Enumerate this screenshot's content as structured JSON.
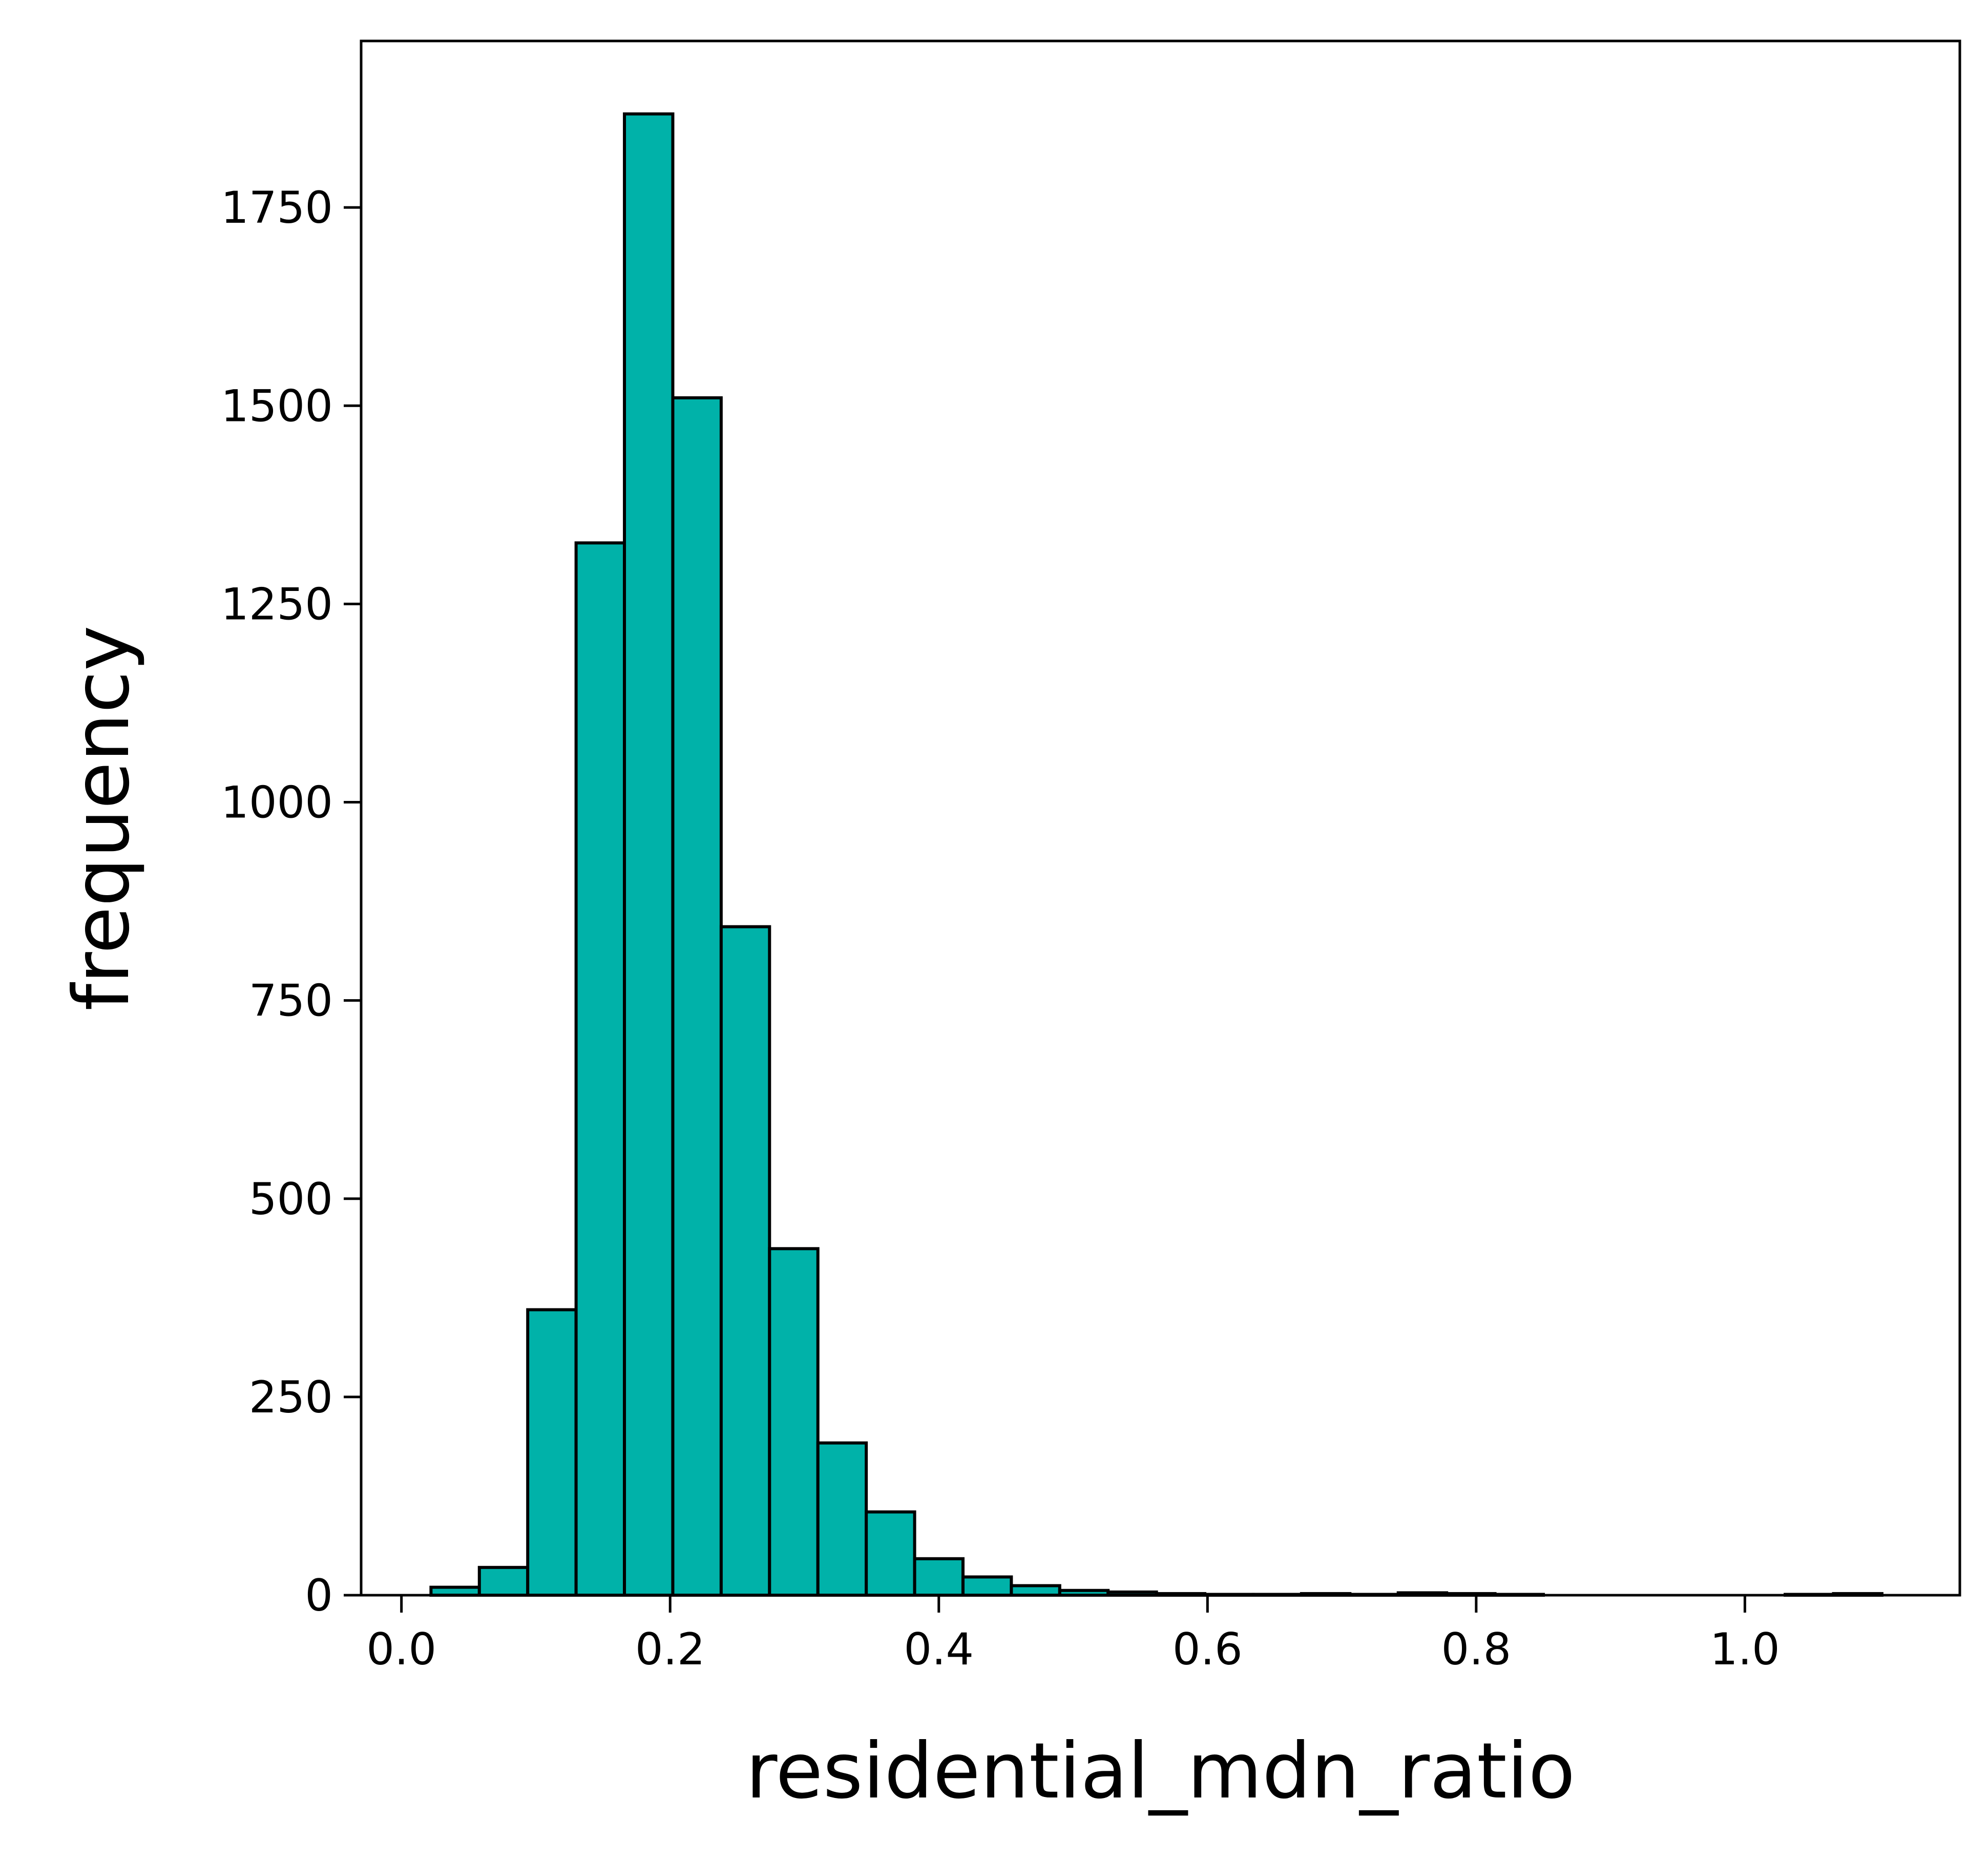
{
  "chart_data": {
    "type": "bar",
    "xlabel": "residential_mdn_ratio",
    "ylabel": "frequency",
    "xlim": [
      -0.03,
      1.16
    ],
    "ylim": [
      0,
      1960
    ],
    "xticks": [
      0.0,
      0.2,
      0.4,
      0.6,
      0.8,
      1.0
    ],
    "xtick_labels": [
      "0.0",
      "0.2",
      "0.4",
      "0.6",
      "0.8",
      "1.0"
    ],
    "yticks": [
      0,
      250,
      500,
      750,
      1000,
      1250,
      1500,
      1750
    ],
    "ytick_labels": [
      "0",
      "250",
      "500",
      "750",
      "1000",
      "1250",
      "1500",
      "1750"
    ],
    "bins": [
      {
        "x0": 0.022,
        "x1": 0.058,
        "count": 10
      },
      {
        "x0": 0.058,
        "x1": 0.094,
        "count": 35
      },
      {
        "x0": 0.094,
        "x1": 0.13,
        "count": 360
      },
      {
        "x0": 0.13,
        "x1": 0.166,
        "count": 1327
      },
      {
        "x0": 0.166,
        "x1": 0.202,
        "count": 1868
      },
      {
        "x0": 0.202,
        "x1": 0.238,
        "count": 1510
      },
      {
        "x0": 0.238,
        "x1": 0.274,
        "count": 843
      },
      {
        "x0": 0.274,
        "x1": 0.31,
        "count": 437
      },
      {
        "x0": 0.31,
        "x1": 0.346,
        "count": 192
      },
      {
        "x0": 0.346,
        "x1": 0.382,
        "count": 105
      },
      {
        "x0": 0.382,
        "x1": 0.418,
        "count": 46
      },
      {
        "x0": 0.418,
        "x1": 0.454,
        "count": 23
      },
      {
        "x0": 0.454,
        "x1": 0.49,
        "count": 12
      },
      {
        "x0": 0.49,
        "x1": 0.526,
        "count": 6
      },
      {
        "x0": 0.526,
        "x1": 0.562,
        "count": 4
      },
      {
        "x0": 0.562,
        "x1": 0.598,
        "count": 2
      },
      {
        "x0": 0.598,
        "x1": 0.634,
        "count": 1
      },
      {
        "x0": 0.634,
        "x1": 0.67,
        "count": 1
      },
      {
        "x0": 0.67,
        "x1": 0.706,
        "count": 2
      },
      {
        "x0": 0.706,
        "x1": 0.742,
        "count": 1
      },
      {
        "x0": 0.742,
        "x1": 0.778,
        "count": 3
      },
      {
        "x0": 0.778,
        "x1": 0.814,
        "count": 2
      },
      {
        "x0": 0.814,
        "x1": 0.85,
        "count": 1
      },
      {
        "x0": 0.85,
        "x1": 0.886,
        "count": 0
      },
      {
        "x0": 0.886,
        "x1": 0.922,
        "count": 0
      },
      {
        "x0": 0.922,
        "x1": 0.958,
        "count": 0
      },
      {
        "x0": 0.958,
        "x1": 0.994,
        "count": 0
      },
      {
        "x0": 0.994,
        "x1": 1.03,
        "count": 0
      },
      {
        "x0": 1.03,
        "x1": 1.066,
        "count": 1
      },
      {
        "x0": 1.066,
        "x1": 1.102,
        "count": 2
      }
    ],
    "grid": false,
    "legend": "none",
    "colors": {
      "bar_fill": "#00b2a9",
      "bar_edge": "#000000",
      "axis": "#000000",
      "background": "#ffffff"
    }
  }
}
